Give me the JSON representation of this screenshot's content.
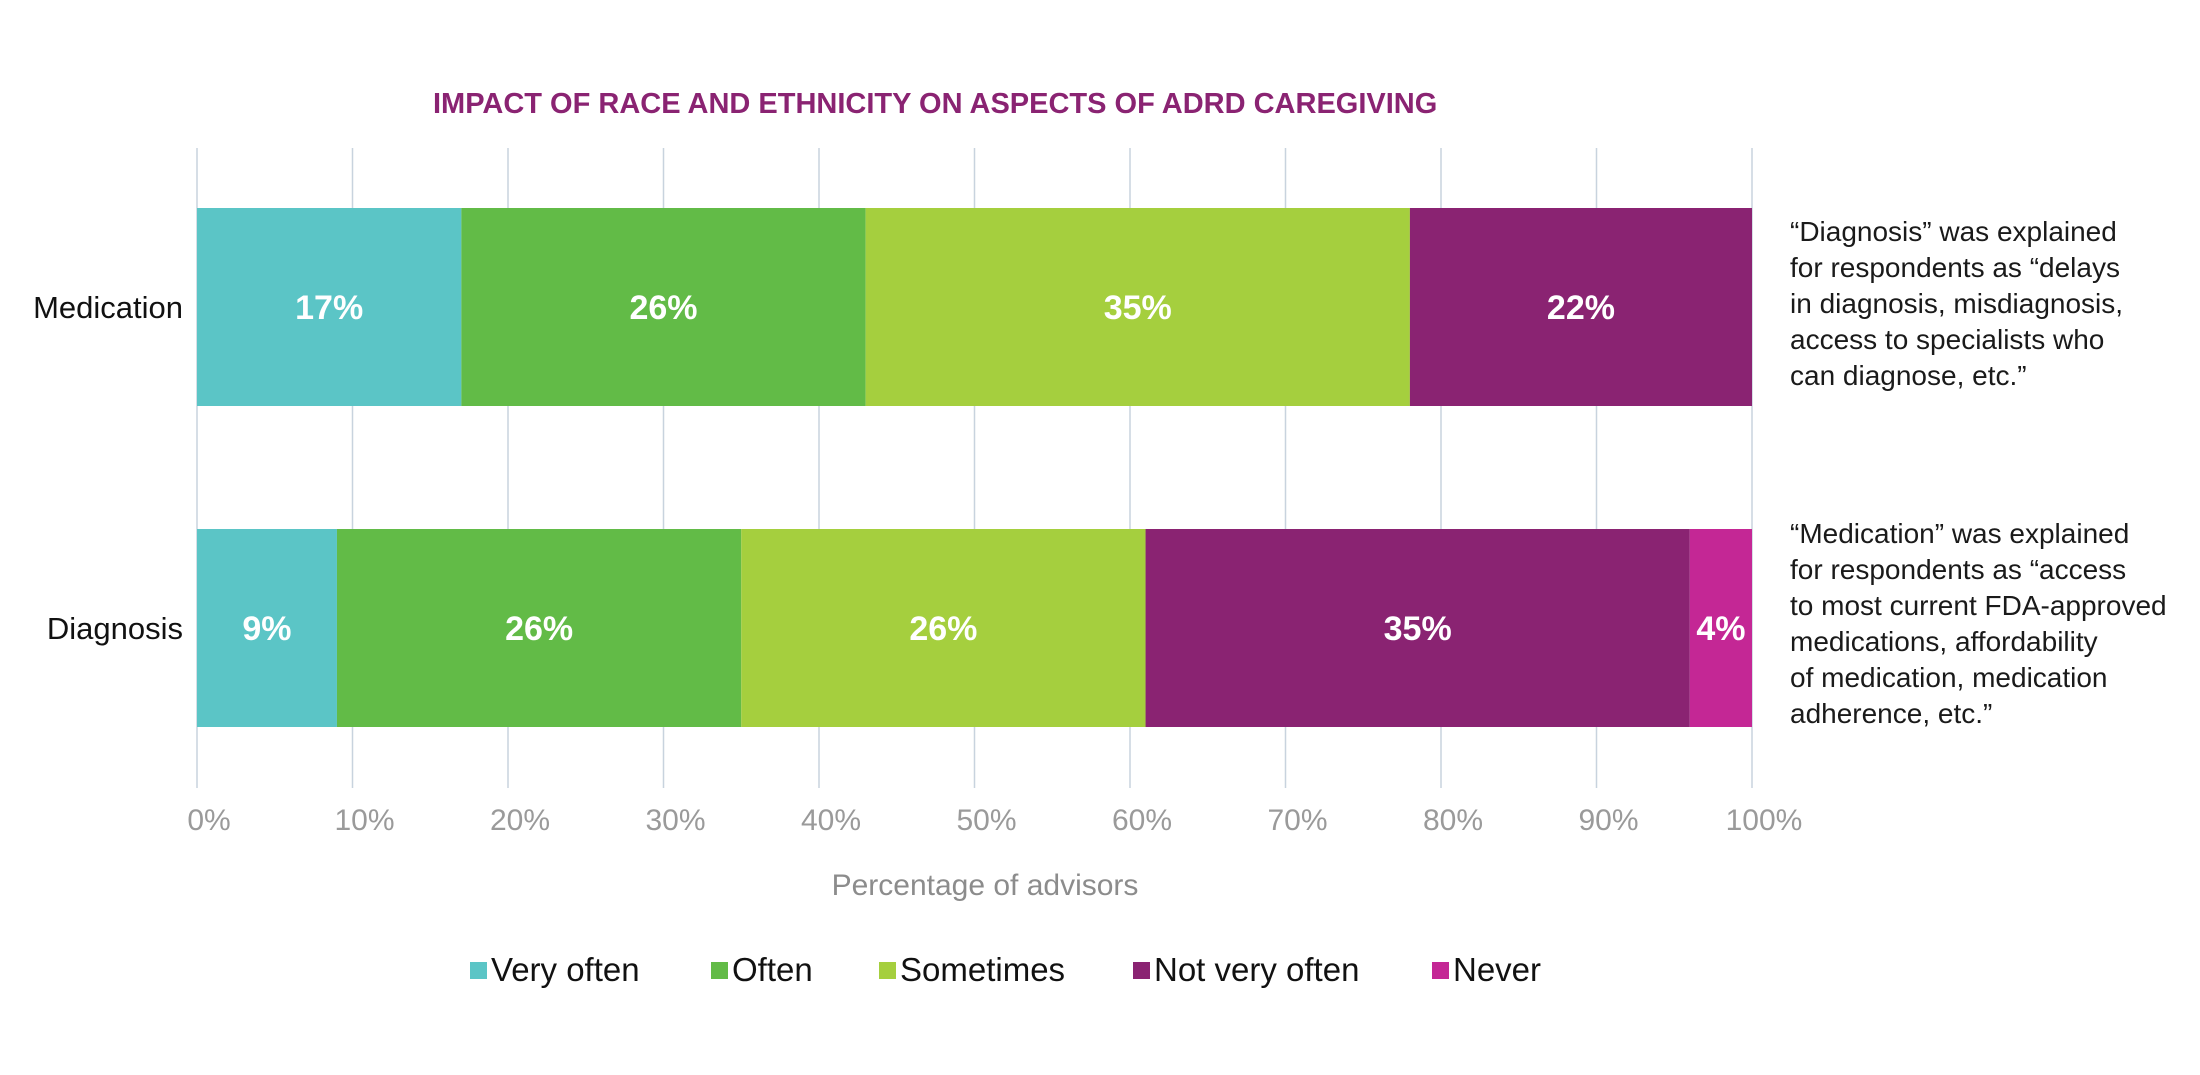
{
  "chart_data": {
    "type": "bar",
    "orientation": "horizontal",
    "stacked": true,
    "title": "IMPACT OF RACE AND ETHNICITY ON ASPECTS OF ADRD CAREGIVING",
    "categories": [
      "Medication",
      "Diagnosis"
    ],
    "series": [
      {
        "name": "Very often",
        "color": "#5bc5c6",
        "values": [
          17,
          9
        ],
        "labels": [
          "17%",
          "9%"
        ]
      },
      {
        "name": "Often",
        "color": "#62bb47",
        "values": [
          26,
          26
        ],
        "labels": [
          "26%",
          "26%"
        ]
      },
      {
        "name": "Sometimes",
        "color": "#a5cf3e",
        "values": [
          35,
          26
        ],
        "labels": [
          "35%",
          "26%"
        ]
      },
      {
        "name": "Not very often",
        "color": "#8a2372",
        "values": [
          22,
          35
        ],
        "labels": [
          "22%",
          "35%"
        ]
      },
      {
        "name": "Never",
        "color": "#c42795",
        "values": [
          0,
          4
        ],
        "labels": [
          "",
          "4%"
        ]
      }
    ],
    "xlabel": "Percentage of advisors",
    "xlim": [
      0,
      100
    ],
    "xticks": [
      "0%",
      "10%",
      "20%",
      "30%",
      "40%",
      "50%",
      "60%",
      "70%",
      "80%",
      "90%",
      "100%"
    ],
    "grid": "vertical",
    "legend_position": "bottom",
    "title_color": "#8a2372"
  },
  "notes": {
    "diagnosis": "“Diagnosis” was explained\nfor respondents as “delays\nin diagnosis, misdiagnosis,\naccess to specialists who\ncan diagnose, etc.”",
    "medication": "“Medication” was explained\nfor respondents as “access\nto most current FDA-approved\nmedications, affordability\nof medication, medication\nadherence, etc.”"
  }
}
